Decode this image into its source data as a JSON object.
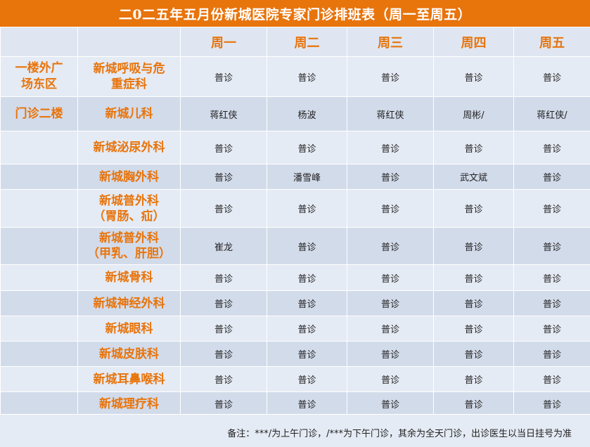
{
  "title": "二0二五年五月份新城医院专家门诊排班表（周一至周五）",
  "header": {
    "corner_location": "",
    "corner_department": "",
    "days": [
      "周一",
      "周二",
      "周三",
      "周四",
      "周五"
    ]
  },
  "rows": [
    {
      "location": "一楼外广\n场东区",
      "department": "新城呼吸与危\n重症科",
      "cells": [
        "普诊",
        "普诊",
        "普诊",
        "普诊",
        "普诊"
      ]
    },
    {
      "location": "门诊二楼",
      "department": "新城儿科",
      "cells": [
        "蒋红侠",
        "杨波",
        "蒋红侠",
        "周彬/",
        "蒋红侠/"
      ]
    },
    {
      "location": "",
      "department": "新城泌尿外科",
      "cells": [
        "普诊",
        "普诊",
        "普诊",
        "普诊",
        "普诊"
      ]
    },
    {
      "location": "",
      "department": "新城胸外科",
      "cells": [
        "普诊",
        "潘雪峰",
        "普诊",
        "武文斌",
        "普诊"
      ]
    },
    {
      "location": "",
      "department": "新城普外科\n（胃肠、疝）",
      "cells": [
        "普诊",
        "普诊",
        "普诊",
        "普诊",
        "普诊"
      ]
    },
    {
      "location": "",
      "department": "新城普外科\n（甲乳、肝胆）",
      "cells": [
        "崔龙",
        "普诊",
        "普诊",
        "普诊",
        "普诊"
      ]
    },
    {
      "location": "",
      "department": "新城骨科",
      "cells": [
        "普诊",
        "普诊",
        "普诊",
        "普诊",
        "普诊"
      ]
    },
    {
      "location": "",
      "department": "新城神经外科",
      "cells": [
        "普诊",
        "普诊",
        "普诊",
        "普诊",
        "普诊"
      ]
    },
    {
      "location": "",
      "department": "新城眼科",
      "cells": [
        "普诊",
        "普诊",
        "普诊",
        "普诊",
        "普诊"
      ]
    },
    {
      "location": "",
      "department": "新城皮肤科",
      "cells": [
        "普诊",
        "普诊",
        "普诊",
        "普诊",
        "普诊"
      ]
    },
    {
      "location": "",
      "department": "新城耳鼻喉科",
      "cells": [
        "普诊",
        "普诊",
        "普诊",
        "普诊",
        "普诊"
      ]
    },
    {
      "location": "",
      "department": "新城理疗科",
      "cells": [
        "普诊",
        "普诊",
        "普诊",
        "普诊",
        "普诊"
      ]
    }
  ],
  "footer_note": "备注：***/为上午门诊，/***为下午门诊，其余为全天门诊，出诊医生以当日挂号为准",
  "colors": {
    "accent": "#e8740c",
    "band_light": "#e5ebf4",
    "band_dark": "#d2dbea",
    "header_bg": "#dfe6f1"
  }
}
